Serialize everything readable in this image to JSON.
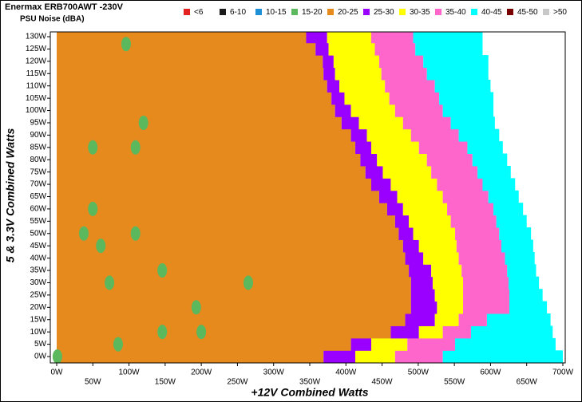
{
  "chart_data": {
    "type": "contour",
    "title": "Enermax ERB700AWT -230V",
    "subtitle": "PSU Noise (dBA)",
    "x_label": "+12V Combined Watts",
    "y_label": "5 & 3.3V Combined Watts",
    "xlim": [
      0,
      700
    ],
    "ylim": [
      0,
      130
    ],
    "xticks": [
      {
        "value": 0,
        "label": "0W"
      },
      {
        "value": 50,
        "label": "50W"
      },
      {
        "value": 100,
        "label": "100W"
      },
      {
        "value": 150,
        "label": "150W"
      },
      {
        "value": 200,
        "label": "200W"
      },
      {
        "value": 250,
        "label": "250W"
      },
      {
        "value": 300,
        "label": "300W"
      },
      {
        "value": 350,
        "label": "350W"
      },
      {
        "value": 400,
        "label": "400W"
      },
      {
        "value": 450,
        "label": "450W"
      },
      {
        "value": 500,
        "label": "500W"
      },
      {
        "value": 550,
        "label": "550W"
      },
      {
        "value": 600,
        "label": "600W"
      },
      {
        "value": 650,
        "label": "650W"
      },
      {
        "value": 700,
        "label": "700W"
      }
    ],
    "yticks": [
      {
        "value": 0,
        "label": "0W"
      },
      {
        "value": 5,
        "label": "5W"
      },
      {
        "value": 10,
        "label": "10W"
      },
      {
        "value": 15,
        "label": "15W"
      },
      {
        "value": 20,
        "label": "20W"
      },
      {
        "value": 25,
        "label": "25W"
      },
      {
        "value": 30,
        "label": "30W"
      },
      {
        "value": 35,
        "label": "35W"
      },
      {
        "value": 40,
        "label": "40W"
      },
      {
        "value": 45,
        "label": "45W"
      },
      {
        "value": 50,
        "label": "50W"
      },
      {
        "value": 55,
        "label": "55W"
      },
      {
        "value": 60,
        "label": "60W"
      },
      {
        "value": 65,
        "label": "65W"
      },
      {
        "value": 70,
        "label": "70W"
      },
      {
        "value": 75,
        "label": "75W"
      },
      {
        "value": 80,
        "label": "80W"
      },
      {
        "value": 85,
        "label": "85W"
      },
      {
        "value": 90,
        "label": "90W"
      },
      {
        "value": 95,
        "label": "95W"
      },
      {
        "value": 100,
        "label": "100W"
      },
      {
        "value": 105,
        "label": "105W"
      },
      {
        "value": 110,
        "label": "110W"
      },
      {
        "value": 115,
        "label": "115W"
      },
      {
        "value": 120,
        "label": "120W"
      },
      {
        "value": 125,
        "label": "125W"
      },
      {
        "value": 130,
        "label": "130W"
      }
    ],
    "y": [
      0,
      5,
      10,
      15,
      20,
      25,
      30,
      35,
      40,
      45,
      50,
      55,
      60,
      65,
      70,
      75,
      80,
      85,
      90,
      95,
      100,
      105,
      110,
      115,
      120,
      125,
      130
    ],
    "series": [
      {
        "name": "<6",
        "color": "#e32222"
      },
      {
        "name": "6-10",
        "color": "#1a1a1a"
      },
      {
        "name": "10-15",
        "color": "#1e90d6"
      },
      {
        "name": "15-20",
        "color": "#5cb85c",
        "x": [
          96,
          120,
          50,
          109,
          50,
          37.5,
          109,
          61,
          146,
          73,
          265,
          193,
          146,
          200,
          85,
          1
        ],
        "spot_y": [
          127,
          95,
          85,
          85,
          60,
          50,
          50,
          45,
          35,
          30,
          30,
          20,
          10,
          10,
          5,
          0
        ]
      },
      {
        "name": "20-25",
        "color": "#e68a1e",
        "values": [
          369,
          407,
          462,
          482,
          490,
          490,
          490,
          487,
          482,
          479,
          473,
          468,
          457,
          446,
          435,
          427,
          420,
          413,
          407,
          394,
          385,
          380,
          374,
          369,
          368,
          358,
          345
        ]
      },
      {
        "name": "25-30",
        "color": "#9a00ff",
        "values": [
          413,
          435,
          501,
          523,
          526,
          523,
          520,
          518,
          507,
          501,
          493,
          487,
          479,
          471,
          462,
          451,
          443,
          435,
          429,
          418,
          407,
          398,
          391,
          385,
          383,
          376,
          374
        ]
      },
      {
        "name": "30-35",
        "color": "#ffff00",
        "values": [
          468,
          485,
          534,
          556,
          562,
          562,
          562,
          560,
          556,
          553,
          551,
          545,
          540,
          534,
          526,
          518,
          512,
          501,
          490,
          479,
          468,
          460,
          454,
          449,
          446,
          440,
          435
        ]
      },
      {
        "name": "35-40",
        "color": "#ff66cc",
        "values": [
          534,
          551,
          573,
          595,
          626,
          626,
          625,
          623,
          620,
          615,
          612,
          608,
          604,
          597,
          589,
          582,
          575,
          568,
          556,
          545,
          534,
          529,
          523,
          512,
          507,
          496,
          493
        ]
      },
      {
        "name": "40-45",
        "color": "#00ffff",
        "values": [
          700,
          690,
          686,
          683,
          678,
          672,
          667,
          663,
          661,
          659,
          656,
          650,
          645,
          639,
          634,
          628,
          623,
          617,
          612,
          606,
          604,
          604,
          600,
          597,
          597,
          589,
          589
        ]
      },
      {
        "name": "45-50",
        "color": "#7a0000"
      },
      {
        "name": ">50",
        "color": "#c8c8c8"
      }
    ]
  }
}
